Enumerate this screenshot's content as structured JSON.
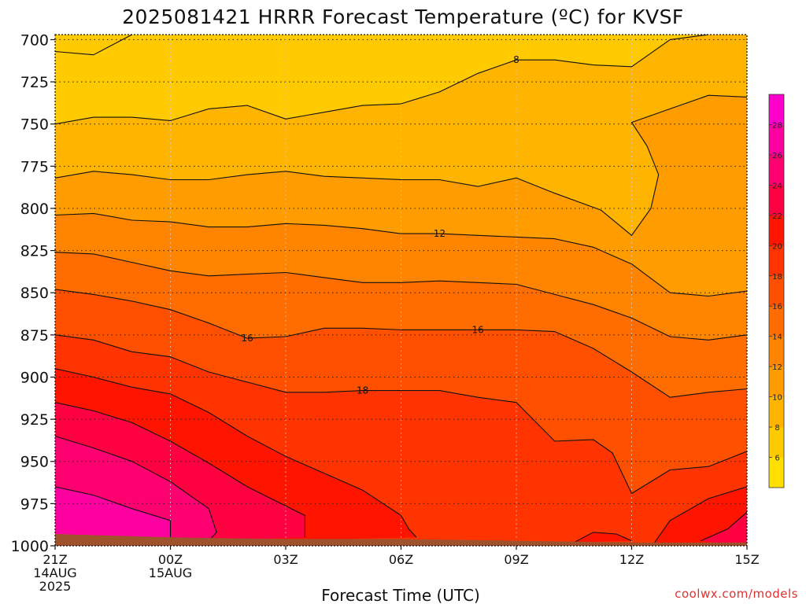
{
  "chart_data": {
    "type": "heatmap",
    "title": "2025081421 HRRR Forecast Temperature (ºC) for KVSF",
    "xlabel": "Forecast Time (UTC)",
    "credit": "coolwx.com/models",
    "x_ticks": [
      {
        "hour": 0,
        "lines": [
          "21Z",
          "14AUG",
          "2025"
        ]
      },
      {
        "hour": 3,
        "lines": [
          "00Z",
          "15AUG"
        ]
      },
      {
        "hour": 6,
        "lines": [
          "03Z"
        ]
      },
      {
        "hour": 9,
        "lines": [
          "06Z"
        ]
      },
      {
        "hour": 12,
        "lines": [
          "09Z"
        ]
      },
      {
        "hour": 15,
        "lines": [
          "12Z"
        ]
      },
      {
        "hour": 18,
        "lines": [
          "15Z"
        ]
      }
    ],
    "xlim_hours": [
      0,
      18
    ],
    "ylim_hpa": [
      1000,
      697
    ],
    "y_ticks": [
      700,
      725,
      750,
      775,
      800,
      825,
      850,
      875,
      900,
      925,
      950,
      975,
      1000
    ],
    "grid": true,
    "colorbar": {
      "levels": [
        4,
        6,
        8,
        10,
        12,
        14,
        16,
        18,
        20,
        22,
        24,
        26,
        28,
        30
      ],
      "labels": [
        "6",
        "8",
        "10",
        "12",
        "14",
        "16",
        "18",
        "20",
        "22",
        "24",
        "26",
        "28"
      ],
      "colors": [
        "#ffe000",
        "#ffca00",
        "#ffb400",
        "#ff9c00",
        "#ff8400",
        "#ff6c00",
        "#ff5000",
        "#ff3400",
        "#ff1400",
        "#ff0040",
        "#ff0070",
        "#ff00a0",
        "#ff00cc"
      ],
      "placement": "right"
    },
    "contours": [
      {
        "level": 6,
        "points": [
          [
            0,
            707
          ],
          [
            1,
            709
          ],
          [
            2,
            697
          ]
        ]
      },
      {
        "level": 8,
        "points": [
          [
            0,
            750
          ],
          [
            1,
            746
          ],
          [
            2,
            746
          ],
          [
            3,
            748
          ],
          [
            4,
            741
          ],
          [
            5,
            739
          ],
          [
            6,
            747
          ],
          [
            7,
            743
          ],
          [
            8,
            739
          ],
          [
            9,
            738
          ],
          [
            10,
            731
          ],
          [
            11,
            720
          ],
          [
            12,
            712
          ],
          [
            13,
            712
          ],
          [
            14,
            715
          ],
          [
            15,
            716
          ],
          [
            16,
            700
          ],
          [
            17,
            697
          ]
        ]
      },
      {
        "level": 8,
        "points": [
          [
            18,
            734
          ],
          [
            17,
            733
          ],
          [
            16,
            741
          ],
          [
            15,
            749
          ],
          [
            15.4,
            763
          ],
          [
            15.7,
            780
          ],
          [
            15.5,
            800
          ],
          [
            15.0,
            816
          ],
          [
            14.2,
            801
          ],
          [
            13,
            791
          ],
          [
            12,
            782
          ],
          [
            11,
            787
          ],
          [
            10,
            783
          ],
          [
            9,
            783
          ],
          [
            8,
            782
          ],
          [
            7,
            781
          ],
          [
            6,
            778
          ],
          [
            5,
            780
          ],
          [
            4,
            783
          ],
          [
            3,
            783
          ],
          [
            2,
            780
          ],
          [
            1,
            778
          ],
          [
            0,
            782
          ]
        ]
      },
      {
        "level": 12,
        "points": [
          [
            0,
            804
          ],
          [
            1,
            803
          ],
          [
            2,
            807
          ],
          [
            3,
            808
          ],
          [
            4,
            811
          ],
          [
            5,
            811
          ],
          [
            6,
            809
          ],
          [
            7,
            810
          ],
          [
            8,
            812
          ],
          [
            9,
            815
          ],
          [
            10,
            815
          ],
          [
            11,
            816
          ],
          [
            12,
            817
          ],
          [
            13,
            818
          ],
          [
            14,
            823
          ],
          [
            15,
            833
          ],
          [
            16,
            850
          ],
          [
            17,
            852
          ],
          [
            18,
            849
          ]
        ]
      },
      {
        "level": 14,
        "points": [
          [
            0,
            826
          ],
          [
            1,
            827
          ],
          [
            2,
            832
          ],
          [
            3,
            837
          ],
          [
            4,
            840
          ],
          [
            5,
            839
          ],
          [
            6,
            838
          ],
          [
            7,
            841
          ],
          [
            8,
            844
          ],
          [
            9,
            844
          ],
          [
            10,
            843
          ],
          [
            11,
            844
          ],
          [
            12,
            845
          ],
          [
            13,
            851
          ],
          [
            14,
            857
          ],
          [
            15,
            865
          ],
          [
            16,
            876
          ],
          [
            17,
            878
          ],
          [
            18,
            875
          ]
        ]
      },
      {
        "level": 16,
        "points": [
          [
            0,
            848
          ],
          [
            1,
            851
          ],
          [
            2,
            855
          ],
          [
            3,
            860
          ],
          [
            4,
            868
          ],
          [
            5,
            877
          ],
          [
            6,
            876
          ],
          [
            7,
            871
          ],
          [
            8,
            871
          ],
          [
            9,
            872
          ],
          [
            10,
            872
          ],
          [
            11,
            872
          ],
          [
            12,
            872
          ],
          [
            13,
            873
          ],
          [
            14,
            883
          ],
          [
            15,
            897
          ],
          [
            16,
            912
          ],
          [
            17,
            909
          ],
          [
            18,
            907
          ]
        ]
      },
      {
        "level": 18,
        "points": [
          [
            0,
            875
          ],
          [
            1,
            878
          ],
          [
            2,
            885
          ],
          [
            3,
            888
          ],
          [
            4,
            897
          ],
          [
            5,
            903
          ],
          [
            6,
            909
          ],
          [
            7,
            909
          ],
          [
            8,
            908
          ],
          [
            9,
            908
          ],
          [
            10,
            908
          ],
          [
            11,
            912
          ],
          [
            12,
            915
          ],
          [
            13,
            938
          ],
          [
            14,
            937
          ],
          [
            14.5,
            945
          ],
          [
            15,
            969
          ],
          [
            15.5,
            962
          ],
          [
            16,
            955
          ],
          [
            17,
            953
          ],
          [
            18,
            944
          ]
        ]
      },
      {
        "level": 20,
        "points": [
          [
            0,
            895
          ],
          [
            1,
            900
          ],
          [
            2,
            906
          ],
          [
            3,
            910
          ],
          [
            4,
            921
          ],
          [
            5,
            935
          ],
          [
            6,
            947
          ],
          [
            7,
            957
          ],
          [
            8,
            967
          ],
          [
            9,
            982
          ],
          [
            9.2,
            990
          ],
          [
            9.4,
            995
          ]
        ]
      },
      {
        "level": 20,
        "points": [
          [
            13.5,
            998
          ],
          [
            14,
            992
          ],
          [
            14.6,
            993
          ],
          [
            15,
            997
          ]
        ]
      },
      {
        "level": 20,
        "points": [
          [
            15.6,
            998
          ],
          [
            16,
            985
          ],
          [
            17,
            972
          ],
          [
            18,
            965
          ]
        ]
      },
      {
        "level": 22,
        "points": [
          [
            0,
            915
          ],
          [
            1,
            920
          ],
          [
            2,
            927
          ],
          [
            3,
            938
          ],
          [
            4,
            951
          ],
          [
            5,
            965
          ],
          [
            6.5,
            982
          ],
          [
            6.5,
            995
          ]
        ]
      },
      {
        "level": 22,
        "points": [
          [
            16.8,
            997
          ],
          [
            17.5,
            990
          ],
          [
            18,
            980
          ]
        ]
      },
      {
        "level": 24,
        "points": [
          [
            0,
            935
          ],
          [
            1,
            942
          ],
          [
            2,
            950
          ],
          [
            3,
            962
          ],
          [
            4,
            978
          ],
          [
            4.2,
            992
          ],
          [
            4,
            997
          ]
        ]
      },
      {
        "level": 26,
        "points": [
          [
            0,
            965
          ],
          [
            1,
            970
          ],
          [
            2,
            978
          ],
          [
            3,
            985
          ],
          [
            3,
            995
          ]
        ]
      }
    ],
    "contour_labels": [
      {
        "text": "8",
        "hour": 12,
        "hpa": 712
      },
      {
        "text": "12",
        "hour": 10,
        "hpa": 815
      },
      {
        "text": "16",
        "hour": 5,
        "hpa": 877
      },
      {
        "text": "16",
        "hour": 11,
        "hpa": 872
      },
      {
        "text": "18",
        "hour": 8,
        "hpa": 908
      }
    ],
    "terrain": {
      "color": "#a0522d",
      "points": [
        [
          0,
          993
        ],
        [
          3,
          995
        ],
        [
          6,
          996
        ],
        [
          9,
          996
        ],
        [
          12,
          997
        ],
        [
          15,
          998
        ],
        [
          18,
          998
        ]
      ]
    }
  }
}
